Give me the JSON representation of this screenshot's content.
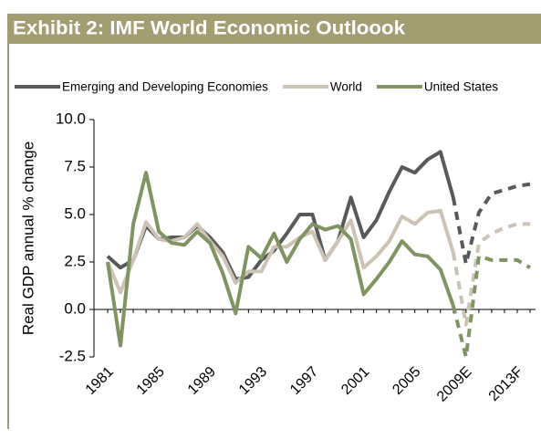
{
  "chart_data": {
    "type": "line",
    "title": "Exhibit 2: IMF World Economic Outloook",
    "y_label": "Real GDP annual % change",
    "categories": [
      "1981",
      null,
      null,
      null,
      "1985",
      null,
      null,
      null,
      "1989",
      null,
      null,
      null,
      "1993",
      null,
      null,
      null,
      "1997",
      null,
      null,
      null,
      "2001",
      null,
      null,
      null,
      "2005",
      null,
      null,
      null,
      "2009E",
      null,
      null,
      null,
      "2013F",
      null
    ],
    "dashed_from": 27,
    "series": [
      {
        "name": "Emerging and Developing Economies",
        "color": "#58595b",
        "values": [
          2.8,
          2.2,
          2.6,
          4.4,
          3.7,
          3.8,
          3.8,
          4.4,
          3.8,
          3.0,
          1.6,
          1.7,
          2.6,
          3.1,
          4.0,
          5.0,
          5.0,
          2.6,
          3.6,
          5.9,
          3.8,
          4.7,
          6.2,
          7.5,
          7.2,
          7.9,
          8.3,
          5.9,
          2.4,
          5.1,
          6.1,
          6.3,
          6.5,
          6.6
        ]
      },
      {
        "name": "World",
        "color": "#cdc3b4",
        "values": [
          2.5,
          0.9,
          2.6,
          4.6,
          3.7,
          3.6,
          3.8,
          4.5,
          3.6,
          2.8,
          1.4,
          2.0,
          2.0,
          3.3,
          3.3,
          3.8,
          4.1,
          2.6,
          3.6,
          4.7,
          2.2,
          2.8,
          3.6,
          4.9,
          4.5,
          5.1,
          5.2,
          3.0,
          -0.8,
          3.5,
          4.0,
          4.3,
          4.5,
          4.5
        ]
      },
      {
        "name": "United States",
        "color": "#7f9460",
        "values": [
          2.5,
          -1.9,
          4.5,
          7.2,
          4.1,
          3.5,
          3.4,
          4.1,
          3.5,
          1.9,
          -0.2,
          3.3,
          2.7,
          4.0,
          2.5,
          3.7,
          4.5,
          4.2,
          4.4,
          3.7,
          0.8,
          1.6,
          2.5,
          3.6,
          2.9,
          2.8,
          2.1,
          0.2,
          -2.5,
          2.8,
          2.6,
          2.6,
          2.6,
          2.2
        ]
      }
    ],
    "ylim": [
      -2.5,
      10
    ],
    "yticks": [
      {
        "value": 10,
        "label": "10.0"
      },
      7.5,
      {
        "value": 5,
        "label": "5.0"
      },
      2.5,
      {
        "value": 0,
        "label": "0.0"
      },
      -2.5
    ],
    "grid": false
  }
}
